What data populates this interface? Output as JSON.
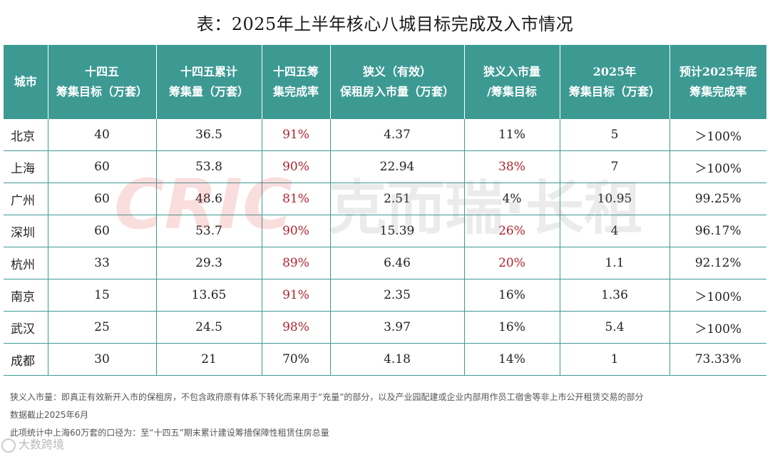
{
  "title": "表：2025年上半年核心八城目标完成及入市情况",
  "columns": [
    [
      "城市"
    ],
    [
      "十四五",
      "筹集目标（万套）"
    ],
    [
      "十四五累计",
      "筹集量（万套）"
    ],
    [
      "十四五筹",
      "集完成率"
    ],
    [
      "狭义（有效）",
      "保租房入市量（万套）"
    ],
    [
      "狭义入市量",
      "/筹集目标"
    ],
    [
      "2025年",
      "筹集目标（万套）"
    ],
    [
      "预计2025年底",
      "筹集完成率"
    ]
  ],
  "rows": [
    {
      "city": "北京",
      "target": "40",
      "cumulative": "36.5",
      "rate": "91%",
      "market": "4.37",
      "ratio": "11%",
      "goal2025": "5",
      "forecast": "＞100%"
    },
    {
      "city": "上海",
      "target": "60",
      "cumulative": "53.8",
      "rate": "90%",
      "market": "22.94",
      "ratio": "38%",
      "goal2025": "7",
      "forecast": "＞100%"
    },
    {
      "city": "广州",
      "target": "60",
      "cumulative": "48.6",
      "rate": "81%",
      "market": "2.51",
      "ratio": "4%",
      "goal2025": "10.95",
      "forecast": "99.25%"
    },
    {
      "city": "深圳",
      "target": "60",
      "cumulative": "53.7",
      "rate": "90%",
      "market": "15.39",
      "ratio": "26%",
      "goal2025": "4",
      "forecast": "96.17%"
    },
    {
      "city": "杭州",
      "target": "33",
      "cumulative": "29.3",
      "rate": "89%",
      "market": "6.46",
      "ratio": "20%",
      "goal2025": "1.1",
      "forecast": "92.12%"
    },
    {
      "city": "南京",
      "target": "15",
      "cumulative": "13.65",
      "rate": "91%",
      "market": "2.35",
      "ratio": "16%",
      "goal2025": "1.36",
      "forecast": "＞100%"
    },
    {
      "city": "武汉",
      "target": "25",
      "cumulative": "24.5",
      "rate": "98%",
      "market": "3.97",
      "ratio": "16%",
      "goal2025": "5.4",
      "forecast": "＞100%"
    },
    {
      "city": "成都",
      "target": "30",
      "cumulative": "21",
      "rate": "70%",
      "market": "4.18",
      "ratio": "14%",
      "goal2025": "1",
      "forecast": "73.33%"
    }
  ],
  "red_cells": {
    "rate": [
      true,
      true,
      true,
      true,
      true,
      true,
      true,
      false
    ],
    "ratio": [
      false,
      true,
      false,
      true,
      true,
      false,
      false,
      false
    ]
  },
  "watermark": "CRIC 克而瑞·长租",
  "notes": [
    "狭义入市量：即真正有效新开入市的保租房，不包含政府原有体系下转化而来用于“充量”的部分，以及产业园配建或企业内部用作员工宿舍等非上市公开租赁交易的部分",
    "数据截止2025年6月",
    "此项统计中上海60万套的口径为：至“十四五”期末累计建设筹措保障性租赁住房总量"
  ],
  "source_label": "大数跨境",
  "colors": {
    "header": "#3c9a93",
    "highlight": "#b02430"
  }
}
